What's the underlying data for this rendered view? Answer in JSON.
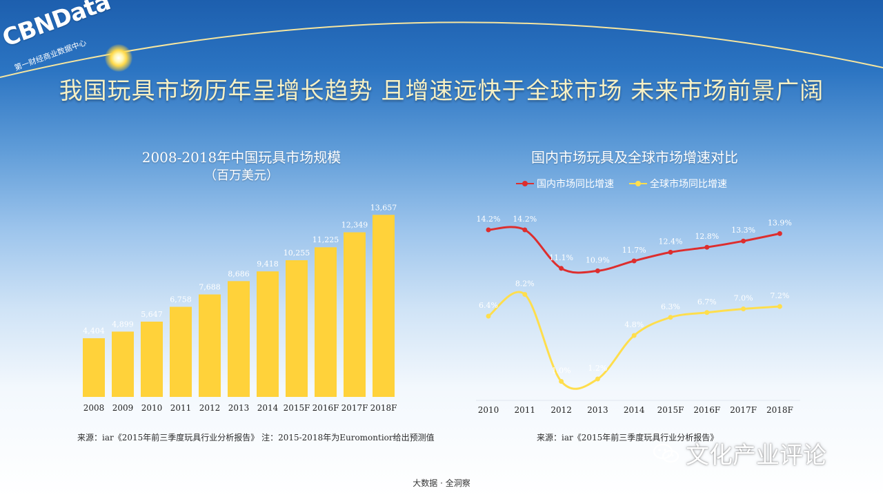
{
  "logo": {
    "brand": "CBNData",
    "subtitle": "第一财经商业数据中心"
  },
  "main_title": "我国玩具市场历年呈增长趋势 且增速远快于全球市场 未来市场前景广阔",
  "colors": {
    "bar": "#ffd23a",
    "domestic": "#dd2e2e",
    "global": "#ffde4d"
  },
  "chart_data": [
    {
      "type": "bar",
      "title": "2008-2018年中国玩具市场规模",
      "subtitle": "（百万美元）",
      "categories": [
        "2008",
        "2009",
        "2010",
        "2011",
        "2012",
        "2013",
        "2014",
        "2015F",
        "2016F",
        "2017F",
        "2018F"
      ],
      "values": [
        4404,
        4899,
        5647,
        6758,
        7688,
        8686,
        9418,
        10255,
        11225,
        12349,
        13657
      ],
      "value_labels": [
        "4,404",
        "4,899",
        "5,647",
        "6,758",
        "7,688",
        "8,686",
        "9,418",
        "10,255",
        "11,225",
        "12,349",
        "13,657"
      ],
      "ylim": [
        0,
        14500
      ],
      "grid": false,
      "source": "来源：iar《2015年前三季度玩具行业分析报告》 注：2015-2018年为Euromontior给出预测值"
    },
    {
      "type": "line",
      "title": "国内市场玩具及全球市场增速对比",
      "categories": [
        "2010",
        "2011",
        "2012",
        "2013",
        "2014",
        "2015F",
        "2016F",
        "2017F",
        "2018F"
      ],
      "series": [
        {
          "name": "国内市场同比增速",
          "values": [
            14.2,
            14.2,
            11.1,
            10.9,
            11.7,
            12.4,
            12.8,
            13.3,
            13.9
          ],
          "labels": [
            "14.2%",
            "14.2%",
            "11.1%",
            "10.9%",
            "11.7%",
            "12.4%",
            "12.8%",
            "13.3%",
            "13.9%"
          ]
        },
        {
          "name": "全球市场同比增速",
          "values": [
            6.4,
            8.2,
            1.0,
            1.2,
            4.8,
            6.3,
            6.7,
            7.0,
            7.2
          ],
          "labels": [
            "6.4%",
            "8.2%",
            "1.0%",
            "1.2%",
            "4.8%",
            "6.3%",
            "6.7%",
            "7.0%",
            "7.2%"
          ]
        }
      ],
      "ylim": [
        0,
        16
      ],
      "legend": "top",
      "grid": false,
      "source": "来源：iar《2015年前三季度玩具行业分析报告》"
    }
  ],
  "watermark": "文化产业评论",
  "footer": "大数据 · 全洞察"
}
